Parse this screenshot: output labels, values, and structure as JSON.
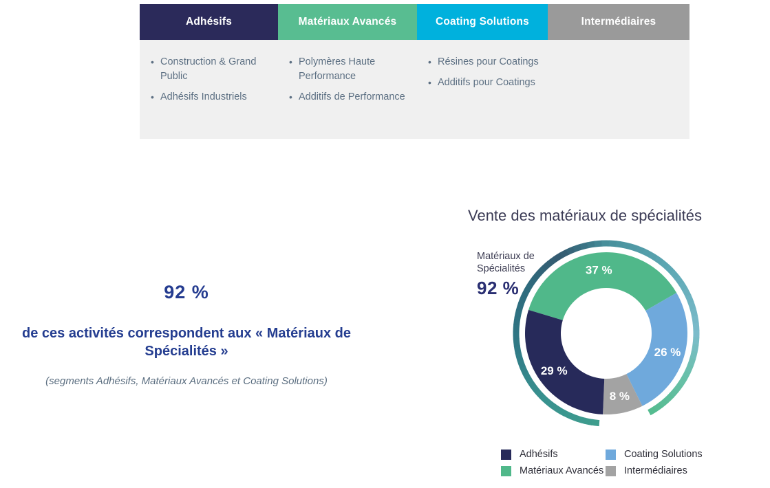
{
  "segments_table": {
    "background": "#f0f0f0",
    "tabs": [
      {
        "label": "Adhésifs",
        "color": "#2b2a5a"
      },
      {
        "label": "Matériaux Avancés",
        "color": "#58bd91"
      },
      {
        "label": "Coating Solutions",
        "color": "#00b1dd"
      },
      {
        "label": "Intermédiaires",
        "color": "#9a9a9a"
      }
    ],
    "columns": [
      {
        "items": [
          "Construction & Grand Public",
          "Adhésifs Industriels"
        ]
      },
      {
        "items": [
          "Polymères Haute Performance",
          "Additifs de Performance"
        ]
      },
      {
        "items": [
          "Résines pour Coatings",
          "Additifs pour Coatings"
        ]
      },
      {
        "items": []
      }
    ]
  },
  "highlight": {
    "value": "92 %",
    "headline": "de ces activités correspondent aux « Matériaux de Spécialités »",
    "note": "(segments Adhésifs, Matériaux Avancés et Coating Solutions)"
  },
  "chart_data": {
    "type": "pie",
    "subtype": "donut",
    "title": "Vente des matériaux de spécialités",
    "start_angle_deg": -73.2,
    "label_format": "{v} %",
    "slices": [
      {
        "label": "Matériaux Avancés",
        "value": 37,
        "color": "#50b88a"
      },
      {
        "label": "Coating Solutions",
        "value": 26,
        "color": "#6fa9dc"
      },
      {
        "label": "Intermédiaires",
        "value": 8,
        "color": "#a3a3a3"
      },
      {
        "label": "Adhésifs",
        "value": 29,
        "color": "#272a5a"
      }
    ],
    "legend_order": [
      "Adhésifs",
      "Matériaux Avancés",
      "Coating Solutions",
      "Intermédiaires"
    ],
    "legend_position": "bottom",
    "callout": {
      "label": "Matériaux de Spécialités",
      "value": "92 %"
    },
    "outer_ring": {
      "covers_percent": 92,
      "gap_over": "Intermédiaires",
      "gradient_stops": [
        [
          0,
          "#478f9b"
        ],
        [
          45,
          "#5da8b4"
        ],
        [
          90,
          "#7cbccb"
        ],
        [
          120,
          "#68c0a8"
        ],
        [
          153,
          "#53bb8d"
        ],
        [
          182,
          "#3f9e8d"
        ],
        [
          225,
          "#38918f"
        ],
        [
          270,
          "#2f7584"
        ],
        [
          300,
          "#2e6b7d"
        ],
        [
          330,
          "#345a70"
        ],
        [
          350,
          "#3d7b8a"
        ]
      ]
    }
  }
}
